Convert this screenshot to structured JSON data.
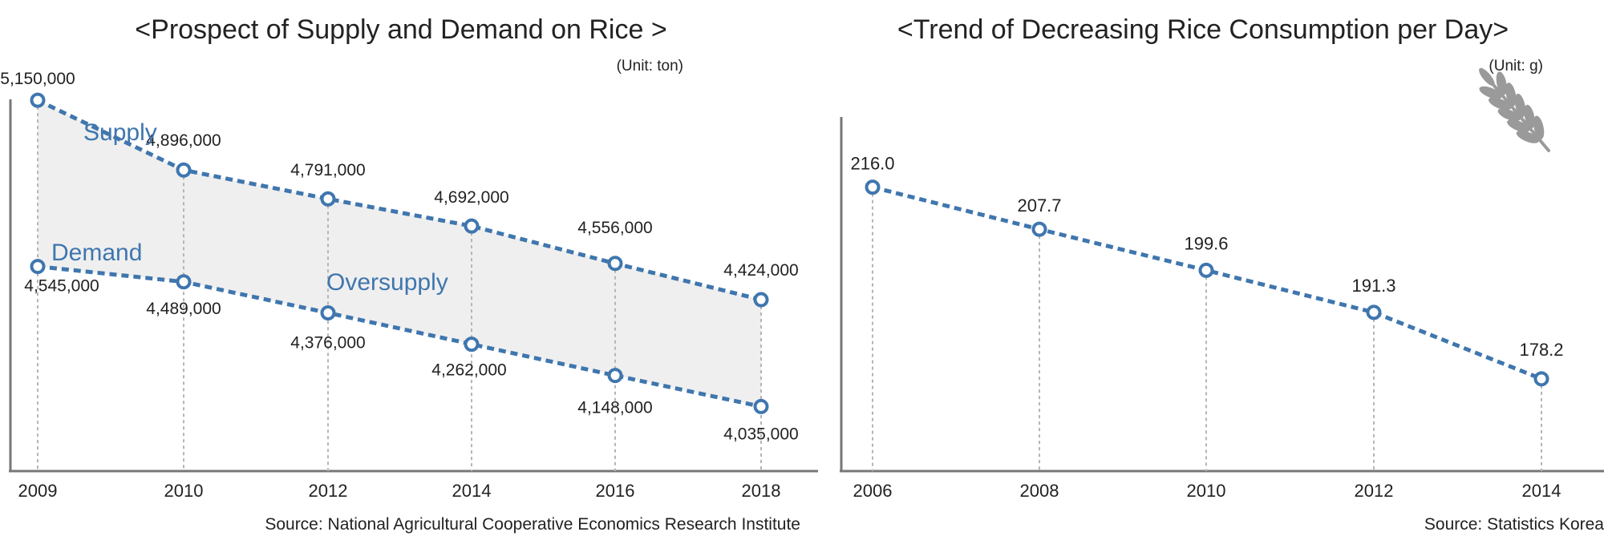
{
  "chart_data": [
    {
      "type": "line",
      "title": "<Prospect of Supply and Demand on Rice >",
      "unit": "(Unit: ton)",
      "source": "Source: National Agricultural Cooperative Economics Research Institute",
      "categories": [
        "2009",
        "2010",
        "2012",
        "2014",
        "2016",
        "2018"
      ],
      "series": [
        {
          "name": "Supply",
          "values": [
            5150000,
            4896000,
            4791000,
            4692000,
            4556000,
            4424000
          ],
          "labels": [
            "5,150,000",
            "4,896,000",
            "4,791,000",
            "4,692,000",
            "4,556,000",
            "4,424,000"
          ]
        },
        {
          "name": "Demand",
          "values": [
            4545000,
            4489000,
            4376000,
            4262000,
            4148000,
            4035000
          ],
          "labels": [
            "4,545,000",
            "4,489,000",
            "4,376,000",
            "4,262,000",
            "4,148,000",
            "4,035,000"
          ]
        }
      ],
      "annotations": [
        "Oversupply"
      ],
      "ylim": [
        3800000,
        5200000
      ],
      "grid": false,
      "colors": {
        "line": "#3f76ae",
        "series_label": "#3f76ae",
        "fill": "#efefef",
        "drop_line": "#b5b5b5",
        "axis": "#777777"
      }
    },
    {
      "type": "line",
      "title": "<Trend of Decreasing Rice Consumption per Day>",
      "unit": "(Unit: g)",
      "source": "Source: Statistics Korea",
      "categories": [
        "2006",
        "2008",
        "2010",
        "2012",
        "2014"
      ],
      "series": [
        {
          "values": [
            216.0,
            207.7,
            199.6,
            191.3,
            178.2
          ],
          "labels": [
            "216.0",
            "207.7",
            "199.6",
            "191.3",
            "178.2"
          ]
        }
      ],
      "ylim": [
        160,
        230
      ],
      "grid": false,
      "icon": "rice-stalk-icon",
      "colors": {
        "line": "#3f76ae",
        "drop_line": "#b5b5b5",
        "axis": "#777777",
        "icon": "#9a9a9a"
      }
    }
  ]
}
